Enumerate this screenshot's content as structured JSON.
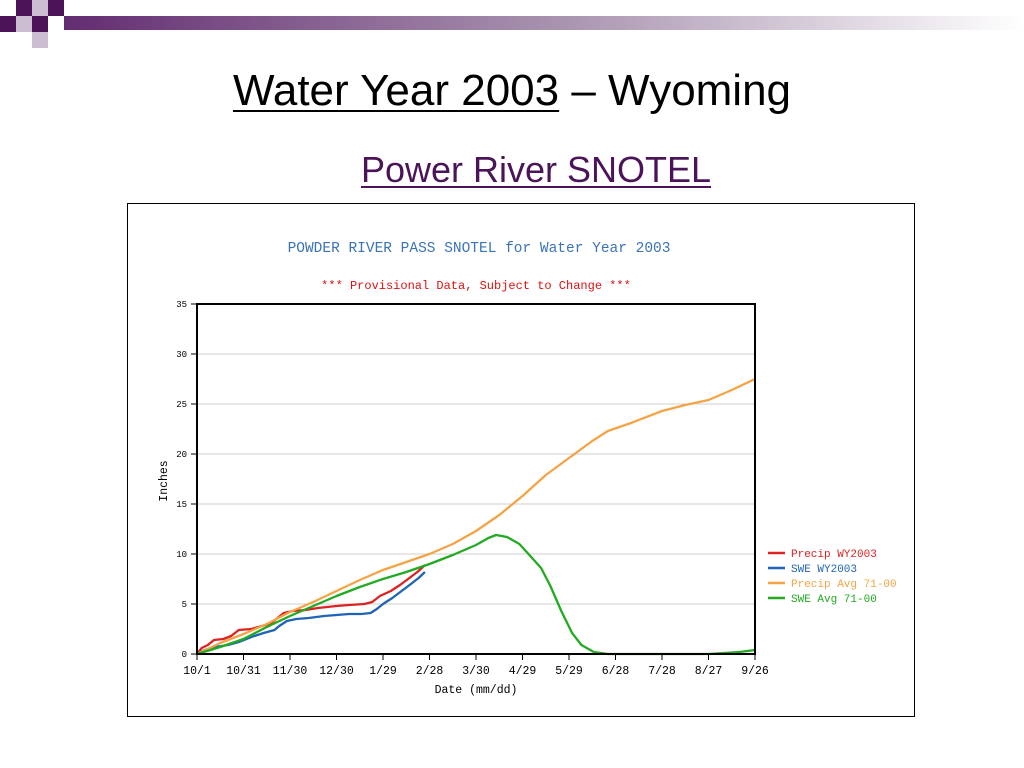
{
  "slide": {
    "title_main": "Water Year 2003",
    "title_rest": " – Wyoming",
    "subtitle": "Power River SNOTEL",
    "accent_color": "#4b1459"
  },
  "chart_data": {
    "type": "line",
    "title": "POWDER RIVER PASS SNOTEL for Water Year 2003",
    "subtitle": "*** Provisional Data, Subject to Change ***",
    "xlabel": "Date (mm/dd)",
    "ylabel": "Inches",
    "ylim": [
      0,
      35
    ],
    "xlim": [
      0,
      360
    ],
    "grid": true,
    "legend_position": "right",
    "x_ticks": [
      {
        "day": 0,
        "label": "10/1"
      },
      {
        "day": 30,
        "label": "10/31"
      },
      {
        "day": 60,
        "label": "11/30"
      },
      {
        "day": 90,
        "label": "12/30"
      },
      {
        "day": 120,
        "label": "1/29"
      },
      {
        "day": 150,
        "label": "2/28"
      },
      {
        "day": 180,
        "label": "3/30"
      },
      {
        "day": 210,
        "label": "4/29"
      },
      {
        "day": 240,
        "label": "5/29"
      },
      {
        "day": 270,
        "label": "6/28"
      },
      {
        "day": 300,
        "label": "7/28"
      },
      {
        "day": 330,
        "label": "8/27"
      },
      {
        "day": 360,
        "label": "9/26"
      }
    ],
    "y_ticks": [
      0,
      5,
      10,
      15,
      20,
      25,
      30,
      35
    ],
    "series": [
      {
        "name": "Precip WY2003",
        "color": "#dd2222",
        "points": [
          [
            0,
            0
          ],
          [
            3,
            0.6
          ],
          [
            7,
            0.9
          ],
          [
            11,
            1.4
          ],
          [
            17,
            1.5
          ],
          [
            22,
            1.8
          ],
          [
            27,
            2.4
          ],
          [
            35,
            2.5
          ],
          [
            42,
            2.8
          ],
          [
            48,
            3.1
          ],
          [
            52,
            3.6
          ],
          [
            56,
            4.1
          ],
          [
            62,
            4.3
          ],
          [
            70,
            4.4
          ],
          [
            78,
            4.6
          ],
          [
            90,
            4.8
          ],
          [
            98,
            4.9
          ],
          [
            108,
            5.0
          ],
          [
            113,
            5.2
          ],
          [
            118,
            5.8
          ],
          [
            125,
            6.3
          ],
          [
            131,
            6.9
          ],
          [
            137,
            7.6
          ],
          [
            143,
            8.3
          ],
          [
            147,
            8.9
          ]
        ]
      },
      {
        "name": "SWE WY2003",
        "color": "#1f64b4",
        "points": [
          [
            0,
            0
          ],
          [
            5,
            0.4
          ],
          [
            12,
            0.7
          ],
          [
            20,
            0.9
          ],
          [
            27,
            1.2
          ],
          [
            35,
            1.7
          ],
          [
            43,
            2.1
          ],
          [
            50,
            2.4
          ],
          [
            53,
            2.8
          ],
          [
            58,
            3.3
          ],
          [
            64,
            3.5
          ],
          [
            72,
            3.6
          ],
          [
            82,
            3.8
          ],
          [
            90,
            3.9
          ],
          [
            98,
            4.0
          ],
          [
            106,
            4.0
          ],
          [
            112,
            4.1
          ],
          [
            116,
            4.5
          ],
          [
            120,
            5.0
          ],
          [
            126,
            5.6
          ],
          [
            132,
            6.3
          ],
          [
            138,
            7.0
          ],
          [
            143,
            7.6
          ],
          [
            147,
            8.2
          ]
        ]
      },
      {
        "name": "Precip Avg 71-00",
        "color": "#f4a446",
        "points": [
          [
            0,
            0
          ],
          [
            15,
            1.1
          ],
          [
            30,
            2.0
          ],
          [
            45,
            3.0
          ],
          [
            60,
            4.2
          ],
          [
            75,
            5.2
          ],
          [
            90,
            6.3
          ],
          [
            105,
            7.4
          ],
          [
            120,
            8.4
          ],
          [
            135,
            9.2
          ],
          [
            150,
            10.0
          ],
          [
            165,
            11.0
          ],
          [
            180,
            12.3
          ],
          [
            195,
            13.9
          ],
          [
            210,
            15.8
          ],
          [
            225,
            17.9
          ],
          [
            240,
            19.6
          ],
          [
            255,
            21.3
          ],
          [
            265,
            22.3
          ],
          [
            280,
            23.1
          ],
          [
            300,
            24.3
          ],
          [
            315,
            24.9
          ],
          [
            330,
            25.4
          ],
          [
            345,
            26.4
          ],
          [
            360,
            27.5
          ]
        ]
      },
      {
        "name": "SWE Avg 71-00",
        "color": "#22aa22",
        "points": [
          [
            0,
            0
          ],
          [
            15,
            0.7
          ],
          [
            30,
            1.5
          ],
          [
            45,
            2.7
          ],
          [
            60,
            3.8
          ],
          [
            75,
            4.8
          ],
          [
            90,
            5.8
          ],
          [
            105,
            6.7
          ],
          [
            120,
            7.5
          ],
          [
            135,
            8.2
          ],
          [
            150,
            9.0
          ],
          [
            165,
            9.9
          ],
          [
            180,
            10.9
          ],
          [
            188,
            11.6
          ],
          [
            193,
            11.9
          ],
          [
            200,
            11.7
          ],
          [
            208,
            11.0
          ],
          [
            215,
            9.8
          ],
          [
            222,
            8.6
          ],
          [
            228,
            6.8
          ],
          [
            235,
            4.3
          ],
          [
            242,
            2.1
          ],
          [
            248,
            0.9
          ],
          [
            256,
            0.2
          ],
          [
            265,
            0
          ],
          [
            330,
            0
          ],
          [
            340,
            0.1
          ],
          [
            350,
            0.2
          ],
          [
            360,
            0.4
          ]
        ]
      }
    ]
  }
}
